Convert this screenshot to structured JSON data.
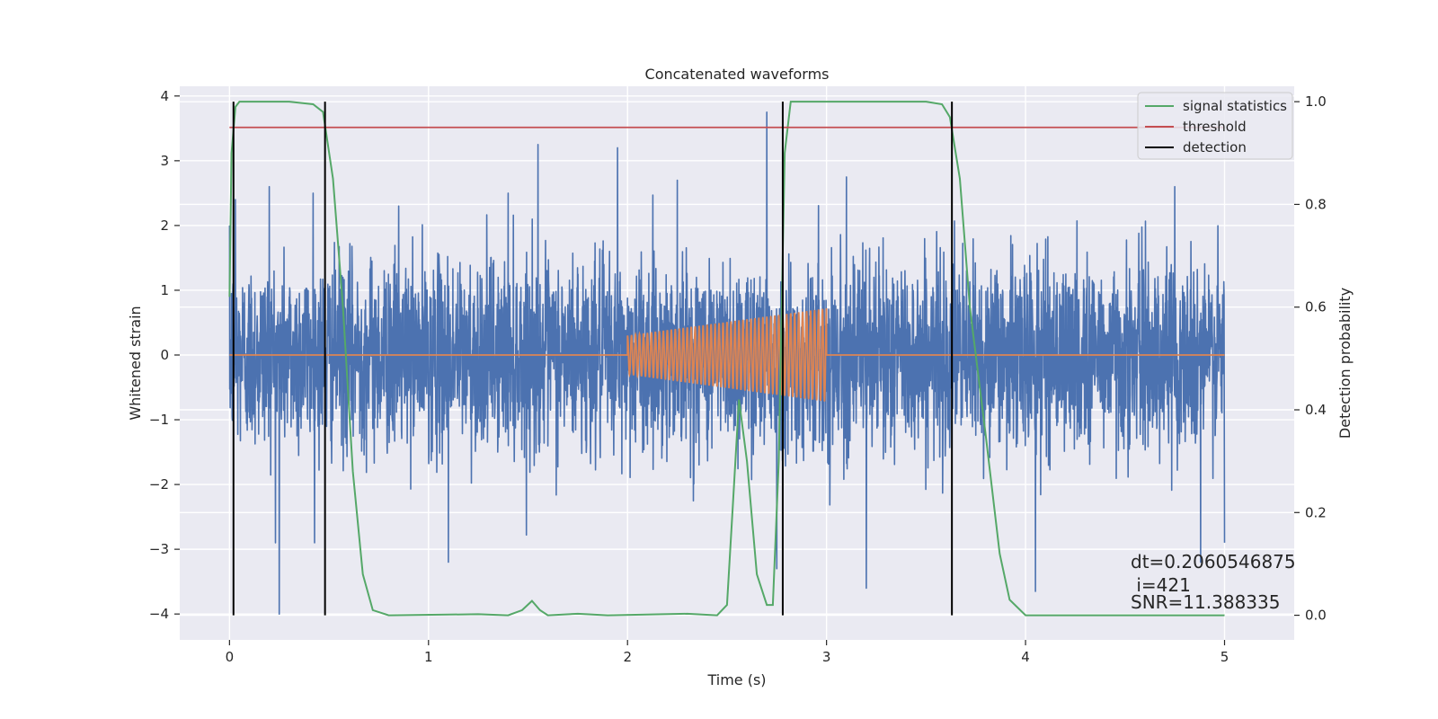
{
  "chart_data": {
    "type": "line",
    "title": "Concatenated waveforms",
    "xlabel": "Time (s)",
    "ylabel_left": "Whitened strain",
    "ylabel_right": "Detection probability",
    "xlim": [
      -0.25,
      5.35
    ],
    "ylim_left": [
      -4.4,
      4.15
    ],
    "ylim_right": [
      -0.048,
      1.03
    ],
    "x_ticks": [
      0,
      1,
      2,
      3,
      4,
      5
    ],
    "y_ticks_left": [
      -4,
      -3,
      -2,
      -1,
      0,
      1,
      2,
      3,
      4
    ],
    "y_ticks_right": [
      0.0,
      0.2,
      0.4,
      0.6,
      0.8,
      1.0
    ],
    "grid": true,
    "legend_position": "top-right",
    "colors": {
      "background": "#eaeaf2",
      "strain": "#4c72b0",
      "injected_waveform": "#dd8452",
      "signal_statistics": "#55a868",
      "threshold": "#c44e52",
      "detection": "#000000"
    },
    "strain_noise": {
      "x_range": [
        0,
        5
      ],
      "typical_envelope": [
        -1.0,
        1.0
      ],
      "peaks": [
        {
          "x": 0.03,
          "y": 2.4
        },
        {
          "x": 0.25,
          "y": -4.0
        },
        {
          "x": 0.2,
          "y": 2.6
        },
        {
          "x": 0.42,
          "y": 2.5
        },
        {
          "x": 0.85,
          "y": 2.3
        },
        {
          "x": 1.1,
          "y": -3.2
        },
        {
          "x": 1.4,
          "y": 2.5
        },
        {
          "x": 1.55,
          "y": 3.25
        },
        {
          "x": 1.95,
          "y": 3.2
        },
        {
          "x": 2.25,
          "y": 2.7
        },
        {
          "x": 2.7,
          "y": 3.75
        },
        {
          "x": 2.75,
          "y": -3.3
        },
        {
          "x": 3.1,
          "y": 2.75
        },
        {
          "x": 3.2,
          "y": -3.6
        },
        {
          "x": 4.05,
          "y": -3.65
        },
        {
          "x": 4.75,
          "y": 2.6
        },
        {
          "x": 4.88,
          "y": -3.2
        },
        {
          "x": 5.0,
          "y": -2.9
        }
      ]
    },
    "injected_waveform": {
      "zero_before": 2.0,
      "start": 2.0,
      "end": 3.0,
      "amplitude_start": 0.3,
      "amplitude_end": 0.72,
      "cycles": 50
    },
    "signal_statistics": [
      [
        0.0,
        0.62
      ],
      [
        0.01,
        0.9
      ],
      [
        0.03,
        0.99
      ],
      [
        0.05,
        1.0
      ],
      [
        0.3,
        1.0
      ],
      [
        0.42,
        0.995
      ],
      [
        0.47,
        0.98
      ],
      [
        0.52,
        0.85
      ],
      [
        0.57,
        0.6
      ],
      [
        0.62,
        0.28
      ],
      [
        0.67,
        0.08
      ],
      [
        0.72,
        0.01
      ],
      [
        0.8,
        0.0
      ],
      [
        1.25,
        0.002
      ],
      [
        1.4,
        0.0
      ],
      [
        1.47,
        0.01
      ],
      [
        1.52,
        0.028
      ],
      [
        1.56,
        0.01
      ],
      [
        1.6,
        0.0
      ],
      [
        1.75,
        0.003
      ],
      [
        1.9,
        0.0
      ],
      [
        2.3,
        0.003
      ],
      [
        2.45,
        0.0
      ],
      [
        2.5,
        0.02
      ],
      [
        2.53,
        0.22
      ],
      [
        2.56,
        0.42
      ],
      [
        2.6,
        0.3
      ],
      [
        2.65,
        0.08
      ],
      [
        2.7,
        0.02
      ],
      [
        2.73,
        0.02
      ],
      [
        2.76,
        0.3
      ],
      [
        2.79,
        0.9
      ],
      [
        2.82,
        1.0
      ],
      [
        3.5,
        1.0
      ],
      [
        3.58,
        0.995
      ],
      [
        3.62,
        0.97
      ],
      [
        3.67,
        0.85
      ],
      [
        3.72,
        0.6
      ],
      [
        3.8,
        0.35
      ],
      [
        3.87,
        0.12
      ],
      [
        3.92,
        0.03
      ],
      [
        4.0,
        0.0
      ],
      [
        5.0,
        0.0
      ]
    ],
    "threshold": {
      "value": 0.95,
      "x_range": [
        0,
        5
      ]
    },
    "detections": [
      0.02,
      0.48,
      2.78,
      3.63
    ],
    "legend": [
      "signal statistics",
      "threshold",
      "detection"
    ],
    "annotations": [
      "dt=0.2060546875",
      " i=421",
      "SNR=11.388335"
    ]
  }
}
